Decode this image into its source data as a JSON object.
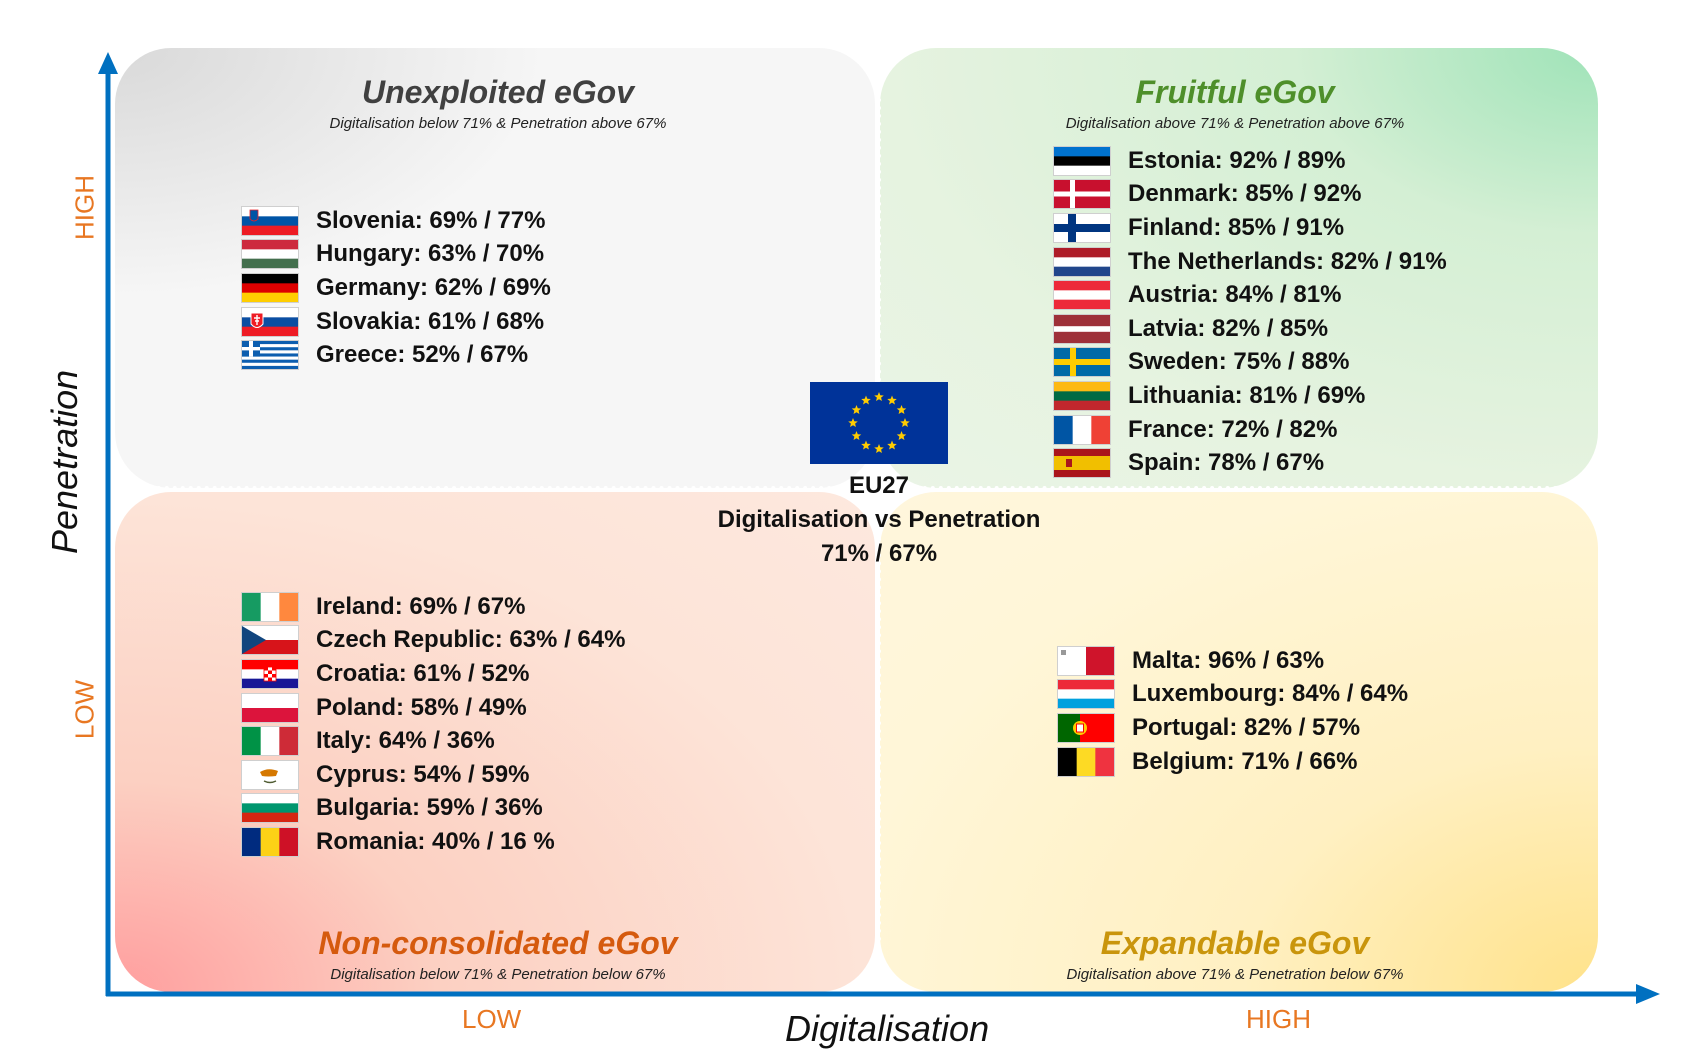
{
  "axes": {
    "x_title": "Digitalisation",
    "y_title": "Penetration",
    "x_low": "LOW",
    "x_high": "HIGH",
    "y_low": "LOW",
    "y_high": "HIGH",
    "axis_color": "#0070C0",
    "tick_color": "#E87722"
  },
  "center": {
    "name": "EU27",
    "label": "Digitalisation vs Penetration",
    "value": "71% / 67%"
  },
  "quadrants": {
    "top_left": {
      "title": "Unexploited  eGov",
      "subtitle": "Digitalisation below 71% & Penetration above 67%",
      "title_color": "#404040",
      "countries": [
        {
          "label": "Slovenia: 69% / 77%",
          "flag": "slovenia"
        },
        {
          "label": "Hungary: 63% / 70%",
          "flag": "hungary"
        },
        {
          "label": "Germany: 62% / 69%",
          "flag": "germany"
        },
        {
          "label": "Slovakia: 61% / 68%",
          "flag": "slovakia"
        },
        {
          "label": "Greece: 52% / 67%",
          "flag": "greece"
        }
      ]
    },
    "top_right": {
      "title": "Fruitful  eGov",
      "subtitle": "Digitalisation above 71% & Penetration above 67%",
      "title_color": "#4E8F2A",
      "countries": [
        {
          "label": "Estonia: 92% / 89%",
          "flag": "estonia"
        },
        {
          "label": "Denmark: 85% / 92%",
          "flag": "denmark"
        },
        {
          "label": "Finland:  85% / 91%",
          "flag": "finland"
        },
        {
          "label": "The Netherlands: 82% / 91%",
          "flag": "netherlands"
        },
        {
          "label": "Austria: 84% / 81%",
          "flag": "austria"
        },
        {
          "label": "Latvia: 82% / 85%",
          "flag": "latvia"
        },
        {
          "label": "Sweden: 75% / 88%",
          "flag": "sweden"
        },
        {
          "label": "Lithuania: 81% / 69%",
          "flag": "lithuania"
        },
        {
          "label": "France: 72% / 82%",
          "flag": "france"
        },
        {
          "label": "Spain: 78% / 67%",
          "flag": "spain"
        }
      ]
    },
    "bottom_left": {
      "title": "Non-consolidated  eGov",
      "subtitle": "Digitalisation below 71% & Penetration below 67%",
      "title_color": "#D55A0E",
      "countries": [
        {
          "label": "Ireland: 69% / 67%",
          "flag": "ireland"
        },
        {
          "label": "Czech Republic: 63% / 64%",
          "flag": "czech"
        },
        {
          "label": "Croatia: 61% / 52%",
          "flag": "croatia"
        },
        {
          "label": "Poland: 58% / 49%",
          "flag": "poland"
        },
        {
          "label": "Italy: 64% / 36%",
          "flag": "italy"
        },
        {
          "label": "Cyprus: 54% / 59%",
          "flag": "cyprus"
        },
        {
          "label": "Bulgaria: 59% / 36%",
          "flag": "bulgaria"
        },
        {
          "label": "Romania: 40% / 16 %",
          "flag": "romania"
        }
      ]
    },
    "bottom_right": {
      "title": "Expandable  eGov",
      "subtitle": "Digitalisation above 71% & Penetration below 67%",
      "title_color": "#C9950C",
      "countries": [
        {
          "label": "Malta: 96% / 63%",
          "flag": "malta"
        },
        {
          "label": "Luxembourg:  84% / 64%",
          "flag": "luxembourg"
        },
        {
          "label": "Portugal: 82% / 57%",
          "flag": "portugal"
        },
        {
          "label": "Belgium: 71% / 66%",
          "flag": "belgium"
        }
      ]
    }
  }
}
